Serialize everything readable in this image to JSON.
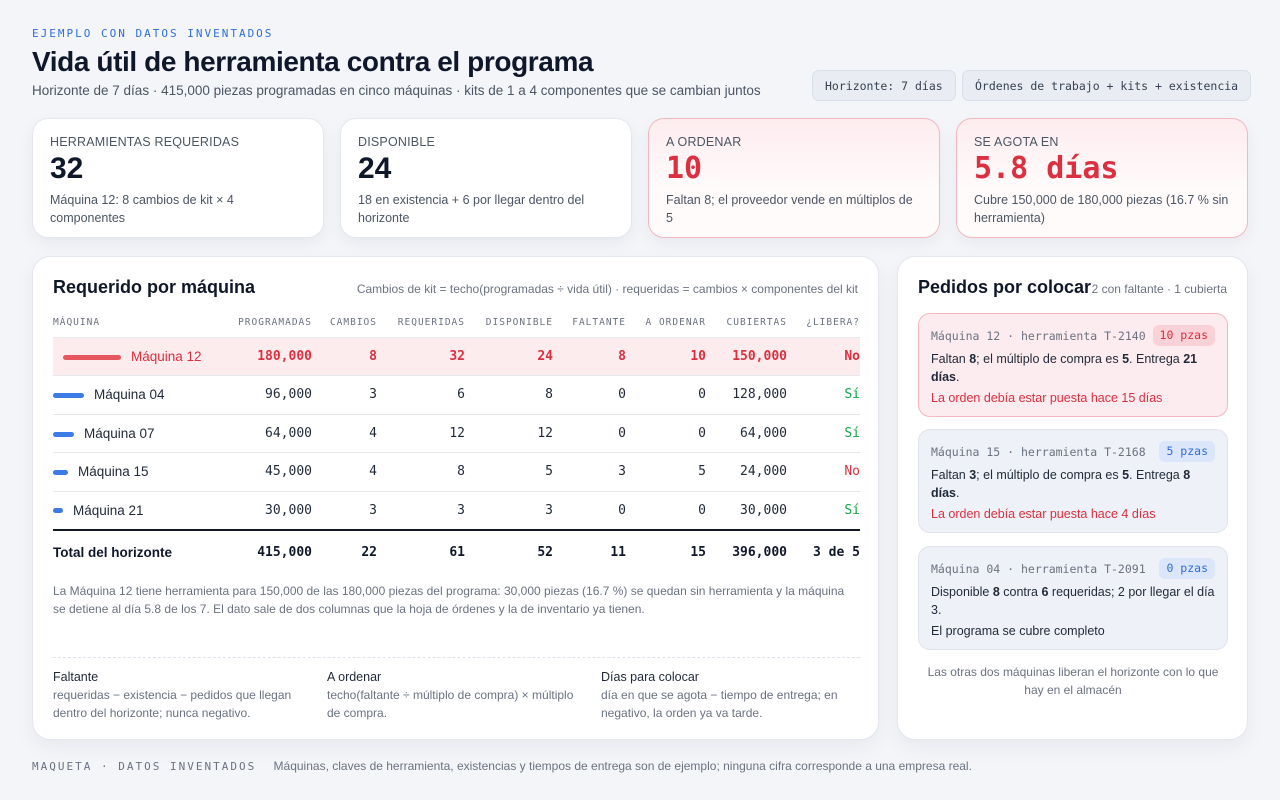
{
  "header": {
    "eyebrow": "EJEMPLO CON DATOS INVENTADOS",
    "title": "Vida útil de herramienta contra el programa",
    "subtitle": "Horizonte de 7 días · 415,000 piezas programadas en cinco máquinas · kits de 1 a 4 componentes que se cambian juntos",
    "chips": [
      "Horizonte: 7 días",
      "Órdenes de trabajo + kits + existencia"
    ]
  },
  "kpis": [
    {
      "label": "Herramientas requeridas",
      "value": "32",
      "note": "Máquina 12: 8 cambios de kit × 4 componentes"
    },
    {
      "label": "Disponible",
      "value": "24",
      "note": "18 en existencia + 6 por llegar dentro del horizonte"
    },
    {
      "label": "A ordenar",
      "value": "10",
      "note": "Faltan 8; el proveedor vende en múltiplos de 5"
    },
    {
      "label": "Se agota en",
      "value": "5.8 días",
      "note": "Cubre 150,000 de 180,000 piezas (16.7 % sin herramienta)"
    }
  ],
  "table": {
    "title": "Requerido por máquina",
    "meta": "Cambios de kit = techo(programadas ÷ vida útil) · requeridas = cambios × componentes del kit",
    "headers": [
      "MÁQUINA",
      "PROGRAMADAS",
      "CAMBIOS",
      "REQUERIDAS",
      "DISPONIBLE",
      "FALTANTE",
      "A ORDENAR",
      "CUBIERTAS",
      "¿LIBERA?"
    ],
    "rows": [
      {
        "machine": "Máquina 12",
        "programmed": "180,000",
        "changes": "8",
        "required": "32",
        "available": "24",
        "shortage": "8",
        "to_order": "10",
        "covered": "150,000",
        "frees": "No",
        "share": 1.0
      },
      {
        "machine": "Máquina 04",
        "programmed": "96,000",
        "changes": "3",
        "required": "6",
        "available": "8",
        "shortage": "0",
        "to_order": "0",
        "covered": "128,000",
        "frees": "Sí",
        "share": 0.533
      },
      {
        "machine": "Máquina 07",
        "programmed": "64,000",
        "changes": "4",
        "required": "12",
        "available": "12",
        "shortage": "0",
        "to_order": "0",
        "covered": "64,000",
        "frees": "Sí",
        "share": 0.356
      },
      {
        "machine": "Máquina 15",
        "programmed": "45,000",
        "changes": "4",
        "required": "8",
        "available": "5",
        "shortage": "3",
        "to_order": "5",
        "covered": "24,000",
        "frees": "No",
        "share": 0.25
      },
      {
        "machine": "Máquina 21",
        "programmed": "30,000",
        "changes": "3",
        "required": "3",
        "available": "3",
        "shortage": "0",
        "to_order": "0",
        "covered": "30,000",
        "frees": "Sí",
        "share": 0.167
      }
    ],
    "total": {
      "machine": "Total del horizonte",
      "programmed": "415,000",
      "changes": "22",
      "required": "61",
      "available": "52",
      "shortage": "11",
      "to_order": "15",
      "covered": "396,000",
      "frees": "3 de 5"
    },
    "explanation": "La Máquina 12 tiene herramienta para 150,000 de las 180,000 piezas del programa: 30,000 piezas (16.7 %) se quedan sin herramienta y la máquina se detiene al día 5.8 de los 7. El dato sale de dos columnas que la hoja de órdenes y la de inventario ya tienen.",
    "definitions": [
      {
        "title": "Faltante",
        "text": "requeridas − existencia − pedidos que llegan dentro del horizonte; nunca negativo."
      },
      {
        "title": "A ordenar",
        "text": "techo(faltante ÷ múltiplo de compra) × múltiplo de compra."
      },
      {
        "title": "Días para colocar",
        "text": "día en que se agota − tiempo de entrega; en negativo, la orden ya va tarde."
      }
    ]
  },
  "orders": {
    "title": "Pedidos por colocar",
    "meta": "2 con faltante · 1 cubierta",
    "items": [
      {
        "key": "Máquina 12 · herramienta T-2140",
        "badge": "10 pzas",
        "b1": "Faltan ",
        "n1": "8",
        "b2": "; el múltiplo de compra es ",
        "n2": "5",
        "b3": ". Entrega ",
        "n3": "21 días",
        "b4": ".",
        "status": "La orden debía estar puesta hace 15 días"
      },
      {
        "key": "Máquina 15 · herramienta T-2168",
        "badge": "5 pzas",
        "b1": "Faltan ",
        "n1": "3",
        "b2": "; el múltiplo de compra es ",
        "n2": "5",
        "b3": ". Entrega ",
        "n3": "8 días",
        "b4": ".",
        "status": "La orden debía estar puesta hace 4 días"
      },
      {
        "key": "Máquina 04 · herramienta T-2091",
        "badge": "0 pzas",
        "b1": "Disponible ",
        "n1": "8",
        "b2": " contra ",
        "n2": "6",
        "b3": " requeridas; 2 por llegar el día 3.",
        "n3": "",
        "b4": "",
        "status": "El programa se cubre completo"
      }
    ],
    "footnote": "Las otras dos máquinas liberan el horizonte con lo que hay en el almacén"
  },
  "footer": {
    "tag": "MAQUETA · DATOS INVENTADOS",
    "text": "Máquinas, claves de herramienta, existencias y tiempos de entrega son de ejemplo; ninguna cifra corresponde a una empresa real."
  },
  "colors": {
    "accent": "#2f6fdc",
    "alert": "#dc2f3f",
    "ok": "#16a34a"
  }
}
